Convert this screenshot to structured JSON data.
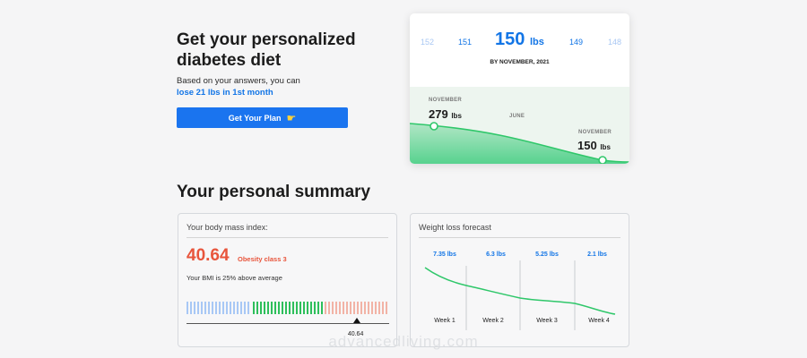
{
  "hero": {
    "title": "Get your personalized diabetes diet",
    "subtitle": "Based on your answers, you can",
    "highlight": "lose 21 lbs in 1st month",
    "button_label": "Get Your Plan",
    "button_icon": "pointing-hand-icon"
  },
  "weight_card": {
    "scale_numbers": [
      "152",
      "151",
      "149",
      "148"
    ],
    "target_value": "150",
    "target_unit": "lbs",
    "by_label": "BY NOVEMBER, 2021",
    "start_month": "NOVEMBER",
    "start_value": "279",
    "start_unit": "lbs",
    "mid_month": "JUNE",
    "end_month": "NOVEMBER",
    "end_value": "150",
    "end_unit": "lbs",
    "colors": {
      "line": "#2fc76a",
      "fill_top": "#a9e4c0",
      "fill_bottom": "#4fd089",
      "accent": "#1275e6"
    }
  },
  "summary": {
    "title": "Your personal summary",
    "bmi": {
      "card_title": "Your body mass index:",
      "value": "40.64",
      "class_label": "Obesity class 3",
      "note": "Your BMI is 25% above average",
      "marker_value": "40.64",
      "marker_fraction": 0.84,
      "colors": {
        "underweight": "#a8c8f5",
        "normal": "#2ebf5b",
        "overweight": "#f2b3a6",
        "value": "#e8553c"
      }
    },
    "forecast": {
      "card_title": "Weight loss forecast",
      "loss_labels": [
        "7.35 lbs",
        "6.3 lbs",
        "5.25 lbs",
        "2.1 lbs"
      ],
      "weeks": [
        "Week 1",
        "Week 2",
        "Week 3",
        "Week 4"
      ],
      "line_color": "#2fc76a"
    }
  },
  "watermark": "advancedliving.com"
}
